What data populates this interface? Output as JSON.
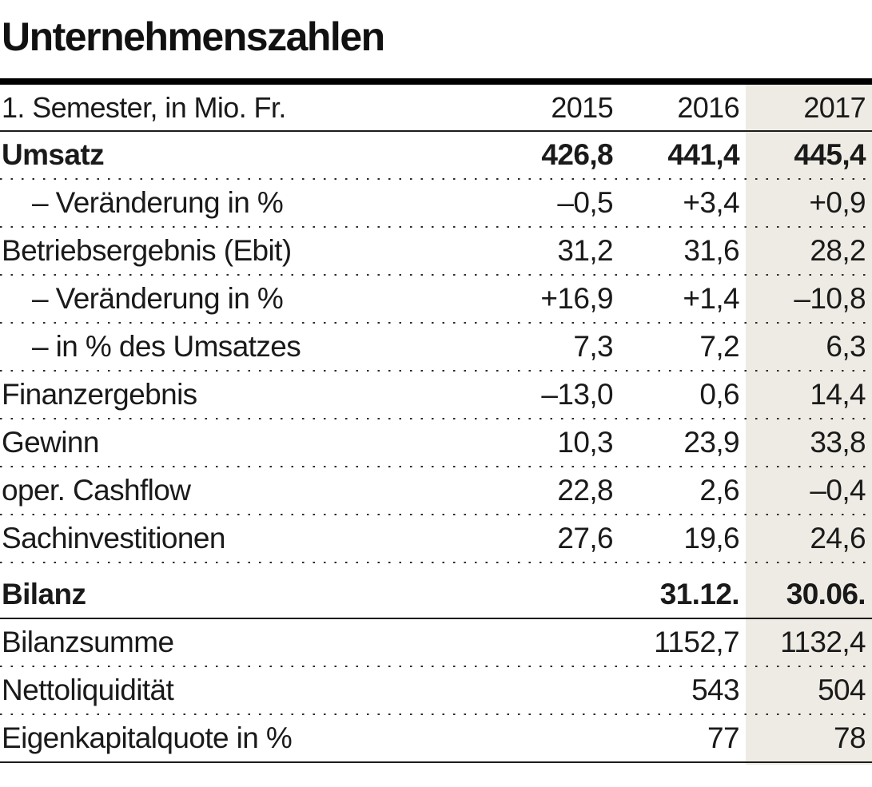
{
  "title": "Unternehmenszahlen",
  "chart_data": {
    "type": "table",
    "title": "Unternehmenszahlen",
    "unit_label": "1. Semester, in Mio. Fr.",
    "columns": [
      "2015",
      "2016",
      "2017"
    ],
    "highlight_column": "2017",
    "highlight_color": "#edebe3",
    "rows": [
      {
        "label": "Umsatz",
        "values": [
          "426,8",
          "441,4",
          "445,4"
        ],
        "bold": true
      },
      {
        "label": "– Veränderung in %",
        "values": [
          "–0,5",
          "+3,4",
          "+0,9"
        ],
        "indent": true
      },
      {
        "label": "Betriebsergebnis (Ebit)",
        "values": [
          "31,2",
          "31,6",
          "28,2"
        ]
      },
      {
        "label": "– Veränderung in %",
        "values": [
          "+16,9",
          "+1,4",
          "–10,8"
        ],
        "indent": true
      },
      {
        "label": "– in % des Umsatzes",
        "values": [
          "7,3",
          "7,2",
          "6,3"
        ],
        "indent": true
      },
      {
        "label": "Finanzergebnis",
        "values": [
          "–13,0",
          "0,6",
          "14,4"
        ]
      },
      {
        "label": "Gewinn",
        "values": [
          "10,3",
          "23,9",
          "33,8"
        ]
      },
      {
        "label": "oper. Cashflow",
        "values": [
          "22,8",
          "2,6",
          "–0,4"
        ]
      },
      {
        "label": "Sachinvestitionen",
        "values": [
          "27,6",
          "19,6",
          "24,6"
        ]
      },
      {
        "label": "Bilanz",
        "values": [
          "",
          "31.12.",
          "30.06."
        ],
        "bold": true
      },
      {
        "label": "Bilanzsumme",
        "values": [
          "",
          "1152,7",
          "1132,4"
        ]
      },
      {
        "label": "Nettoliquidität",
        "values": [
          "",
          "543",
          "504"
        ]
      },
      {
        "label": "Eigenkapitalquote in %",
        "values": [
          "",
          "77",
          "78"
        ]
      }
    ]
  }
}
